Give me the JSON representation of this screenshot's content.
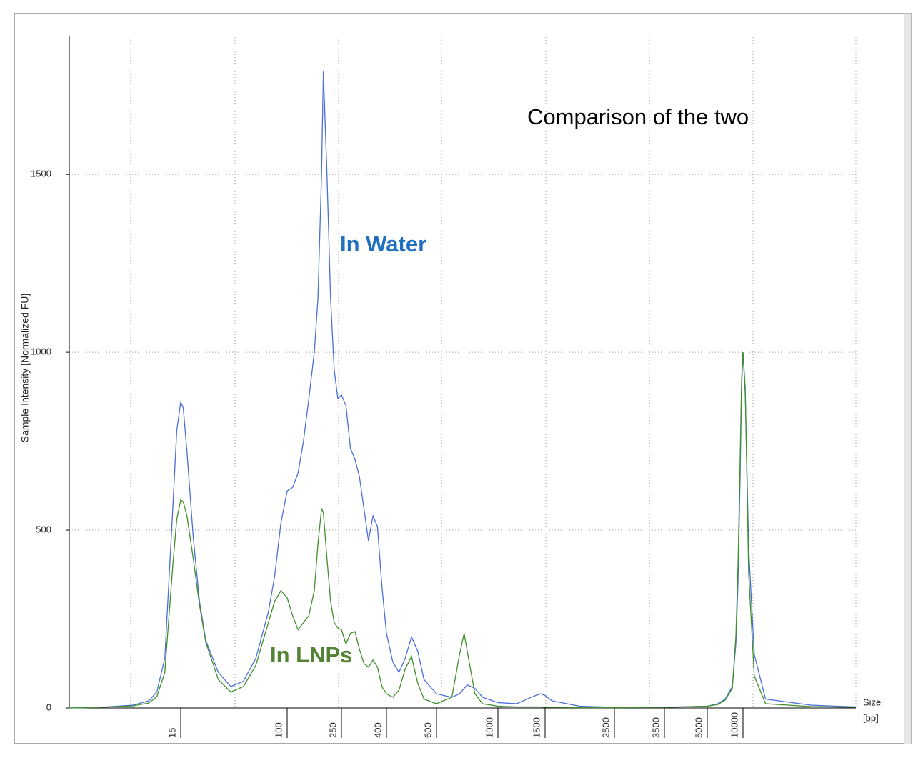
{
  "chart_data": {
    "type": "line",
    "title": "Comparison of the two",
    "y_label": "Sample Intensity [Normalized FU]",
    "x_label": "Size",
    "x_unit": "[bp]",
    "xlim": [
      1,
      20000
    ],
    "xticks": [
      15,
      100,
      250,
      400,
      600,
      1000,
      1500,
      2500,
      3500,
      5000,
      10000
    ],
    "ylim": [
      0,
      1890
    ],
    "yticks": [
      0,
      500,
      1000,
      1500
    ],
    "grid": true,
    "x": [
      1,
      5,
      9,
      11,
      12,
      13,
      14,
      14.5,
      15,
      17,
      20,
      25,
      30,
      35,
      45,
      55,
      65,
      75,
      85,
      90,
      95,
      100,
      115,
      130,
      145,
      160,
      175,
      185,
      195,
      200,
      210,
      220,
      230,
      240,
      250,
      265,
      280,
      295,
      310,
      325,
      340,
      355,
      370,
      385,
      400,
      425,
      450,
      475,
      500,
      525,
      550,
      600,
      700,
      750,
      780,
      800,
      850,
      900,
      1000,
      1200,
      1350,
      1450,
      1500,
      1600,
      2000,
      2500,
      3500,
      5000,
      6500,
      7500,
      8500,
      9000,
      9300,
      9600,
      9800,
      10000,
      10200,
      10500,
      11000,
      12000,
      16000,
      20000
    ],
    "series": [
      {
        "name": "In Water",
        "color": "#4a6fdc",
        "values": [
          0,
          2,
          8,
          20,
          45,
          140,
          560,
          780,
          860,
          845,
          720,
          480,
          300,
          190,
          100,
          60,
          75,
          140,
          270,
          370,
          520,
          610,
          620,
          660,
          750,
          870,
          1000,
          1150,
          1500,
          1790,
          1500,
          1150,
          950,
          870,
          880,
          850,
          730,
          700,
          650,
          560,
          470,
          540,
          510,
          340,
          210,
          130,
          100,
          140,
          200,
          160,
          80,
          40,
          30,
          40,
          55,
          65,
          55,
          30,
          15,
          12,
          30,
          40,
          35,
          20,
          5,
          2,
          2,
          5,
          12,
          25,
          60,
          180,
          350,
          650,
          900,
          1000,
          880,
          450,
          150,
          25,
          8,
          3
        ]
      },
      {
        "name": "In LNPs",
        "color": "#3f8f2a",
        "values": [
          0,
          2,
          6,
          14,
          32,
          100,
          400,
          530,
          585,
          580,
          540,
          420,
          290,
          185,
          80,
          45,
          60,
          120,
          240,
          300,
          330,
          310,
          260,
          220,
          240,
          260,
          330,
          460,
          560,
          550,
          420,
          300,
          240,
          225,
          220,
          180,
          210,
          215,
          165,
          125,
          115,
          135,
          115,
          60,
          40,
          30,
          50,
          110,
          145,
          70,
          25,
          12,
          30,
          150,
          210,
          160,
          40,
          12,
          5,
          3,
          3,
          3,
          2,
          2,
          1,
          1,
          2,
          5,
          10,
          22,
          55,
          200,
          400,
          700,
          920,
          1000,
          900,
          380,
          90,
          12,
          4,
          2
        ]
      }
    ]
  }
}
